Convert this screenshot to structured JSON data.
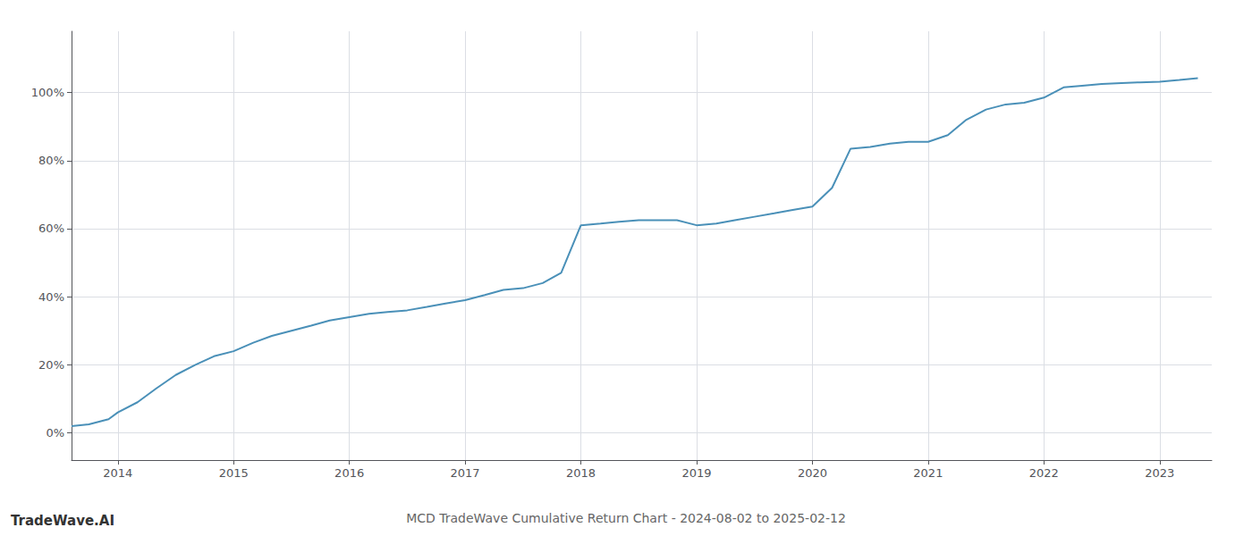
{
  "chart_data": {
    "type": "line",
    "title": "MCD TradeWave Cumulative Return Chart - 2024-08-02 to 2025-02-12",
    "annotations": [
      "TradeWave.AI"
    ],
    "color": "#4a90b8",
    "grid": true,
    "x": [
      2013.6,
      2013.75,
      2013.92,
      2014.0,
      2014.17,
      2014.33,
      2014.5,
      2014.67,
      2014.83,
      2015.0,
      2015.17,
      2015.33,
      2015.5,
      2015.67,
      2015.83,
      2016.0,
      2016.17,
      2016.33,
      2016.5,
      2016.67,
      2016.83,
      2017.0,
      2017.17,
      2017.33,
      2017.5,
      2017.67,
      2017.83,
      2018.0,
      2018.17,
      2018.33,
      2018.5,
      2018.67,
      2018.83,
      2019.0,
      2019.17,
      2019.33,
      2019.5,
      2019.67,
      2019.83,
      2020.0,
      2020.17,
      2020.33,
      2020.5,
      2020.67,
      2020.83,
      2021.0,
      2021.17,
      2021.33,
      2021.5,
      2021.67,
      2021.83,
      2022.0,
      2022.17,
      2022.33,
      2022.5,
      2022.67,
      2022.83,
      2023.0,
      2023.17,
      2023.33
    ],
    "values": [
      2.0,
      2.5,
      4.0,
      6.0,
      9.0,
      13.0,
      17.0,
      20.0,
      22.5,
      24.0,
      26.5,
      28.5,
      30.0,
      31.5,
      33.0,
      34.0,
      35.0,
      35.5,
      36.0,
      37.0,
      38.0,
      39.0,
      40.5,
      42.0,
      42.5,
      44.0,
      47.0,
      61.0,
      61.5,
      62.0,
      62.5,
      62.5,
      62.5,
      61.0,
      61.5,
      62.5,
      63.5,
      64.5,
      65.5,
      66.5,
      72.0,
      83.5,
      84.0,
      85.0,
      85.5,
      85.5,
      87.5,
      92.0,
      95.0,
      96.5,
      97.0,
      98.5,
      101.5,
      102.0,
      102.5,
      102.8,
      103.0,
      103.2,
      103.7,
      104.2
    ],
    "xlim": [
      2013.6,
      2023.45
    ],
    "xticks": [
      2014,
      2015,
      2016,
      2017,
      2018,
      2019,
      2020,
      2021,
      2022,
      2023
    ],
    "ylim": [
      -8,
      118
    ],
    "yticks": [
      {
        "value": 0,
        "label": "0%"
      },
      {
        "value": 20,
        "label": "20%"
      },
      {
        "value": 40,
        "label": "40%"
      },
      {
        "value": 60,
        "label": "60%"
      },
      {
        "value": 80,
        "label": "80%"
      },
      {
        "value": 100,
        "label": "100%"
      }
    ]
  }
}
